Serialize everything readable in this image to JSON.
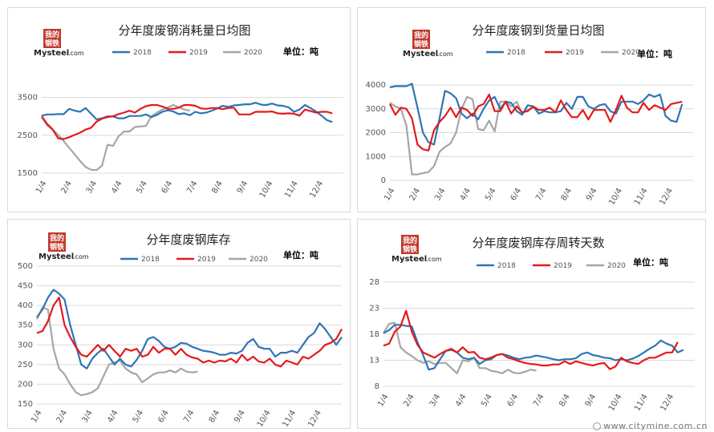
{
  "logo": {
    "line1": "我的",
    "line2": "钢铁",
    "brand": "Mysteel",
    "domain": ".com"
  },
  "watermark": "www.citymine.com.cn",
  "colors": {
    "s2018": "#2e75b6",
    "s2019": "#e41a1c",
    "s2020": "#a6a6a6",
    "grid": "#d9d9d9"
  },
  "chart_data": [
    {
      "type": "line",
      "title": "分年度废钢消耗量日均图",
      "unit_label": "单位：吨",
      "x_ticks": [
        "1/4",
        "2/4",
        "3/4",
        "4/4",
        "5/4",
        "6/4",
        "7/4",
        "8/4",
        "9/4",
        "10/4",
        "11/4",
        "12/4"
      ],
      "ylim": [
        1500,
        4000
      ],
      "y_ticks": [
        1500,
        2500,
        3500
      ],
      "legend_position": "top",
      "series": [
        {
          "name": "2018",
          "values": [
            3020,
            3050,
            3050,
            3060,
            3060,
            3200,
            3150,
            3120,
            3220,
            3070,
            2920,
            2950,
            3000,
            3000,
            2950,
            2950,
            3010,
            3010,
            3010,
            3050,
            2980,
            3040,
            3120,
            3160,
            3130,
            3060,
            3080,
            3030,
            3120,
            3080,
            3100,
            3150,
            3210,
            3280,
            3250,
            3290,
            3300,
            3320,
            3320,
            3360,
            3310,
            3300,
            3340,
            3290,
            3280,
            3240,
            3120,
            3180,
            3300,
            3220,
            3130,
            3020,
            2900,
            2850
          ]
        },
        {
          "name": "2019",
          "values": [
            3000,
            2800,
            2650,
            2420,
            2400,
            2450,
            2510,
            2570,
            2650,
            2700,
            2860,
            2940,
            2980,
            3000,
            3060,
            3100,
            3150,
            3100,
            3200,
            3270,
            3300,
            3300,
            3260,
            3200,
            3200,
            3230,
            3300,
            3300,
            3280,
            3210,
            3200,
            3220,
            3220,
            3190,
            3220,
            3230,
            3050,
            3050,
            3050,
            3120,
            3120,
            3120,
            3130,
            3080,
            3070,
            3080,
            3070,
            3020,
            3180,
            3140,
            3100,
            3120,
            3120,
            3080
          ]
        },
        {
          "name": "2020",
          "values": [
            2980,
            2760,
            2650,
            2510,
            2350,
            2170,
            2000,
            1820,
            1660,
            1590,
            1580,
            1700,
            2250,
            2220,
            2470,
            2600,
            2600,
            2720,
            2730,
            2750,
            3000,
            3100,
            3180,
            3240,
            3300,
            3240,
            3180,
            3150
          ]
        }
      ]
    },
    {
      "type": "line",
      "title": "分年度废钢到货量日均图",
      "unit_label": "单位：吨",
      "x_ticks": [
        "1/4",
        "2/4",
        "3/4",
        "4/4",
        "5/4",
        "6/4",
        "7/4",
        "8/4",
        "9/4",
        "10/4",
        "11/4",
        "12/4"
      ],
      "ylim": [
        0,
        4000
      ],
      "y_ticks": [
        0,
        1000,
        2000,
        3000,
        4000
      ],
      "legend_position": "top",
      "series": [
        {
          "name": "2018",
          "values": [
            3900,
            3950,
            3950,
            3950,
            4050,
            3050,
            2000,
            1600,
            1500,
            2600,
            3750,
            3650,
            3450,
            2800,
            2600,
            2800,
            2550,
            3000,
            3350,
            3500,
            3000,
            3300,
            3250,
            2900,
            2750,
            3150,
            3100,
            2800,
            2900,
            2850,
            2850,
            2900,
            3250,
            3000,
            3500,
            3500,
            3100,
            3000,
            3150,
            3200,
            2900,
            2800,
            3300,
            3300,
            3300,
            3200,
            3350,
            3600,
            3500,
            3600,
            2700,
            2500,
            2450,
            3200
          ]
        },
        {
          "name": "2019",
          "values": [
            3200,
            2750,
            3050,
            3000,
            2600,
            1500,
            1300,
            1250,
            2100,
            2450,
            2700,
            3050,
            2650,
            3050,
            2950,
            2700,
            3100,
            3200,
            3600,
            2900,
            2900,
            3300,
            2800,
            3100,
            2850,
            2900,
            3100,
            2950,
            2950,
            3050,
            2850,
            3350,
            2950,
            2650,
            2650,
            2950,
            2550,
            2950,
            2950,
            2950,
            2450,
            2950,
            3550,
            3050,
            2850,
            2850,
            3250,
            2950,
            3150,
            3050,
            2950,
            3200,
            3250,
            3300
          ]
        },
        {
          "name": "2020",
          "values": [
            3250,
            3100,
            3000,
            2300,
            250,
            250,
            300,
            350,
            600,
            1200,
            1400,
            1550,
            2000,
            3000,
            3500,
            3400,
            2150,
            2100,
            2500,
            2050,
            3300,
            3300,
            3100,
            3300,
            2800,
            2950,
            3050
          ]
        }
      ]
    },
    {
      "type": "line",
      "title": "分年度废钢库存",
      "unit_label": "单位：吨",
      "x_ticks": [
        "1/4",
        "2/4",
        "3/4",
        "4/4",
        "5/4",
        "6/4",
        "7/4",
        "8/4",
        "9/4",
        "10/4",
        "11/4",
        "12/4"
      ],
      "ylim": [
        150,
        500
      ],
      "y_ticks": [
        150,
        200,
        250,
        300,
        350,
        400,
        450,
        500
      ],
      "legend_position": "top",
      "series": [
        {
          "name": "2018",
          "values": [
            370,
            390,
            420,
            440,
            430,
            415,
            350,
            300,
            250,
            240,
            265,
            280,
            290,
            270,
            250,
            265,
            250,
            245,
            262,
            285,
            315,
            320,
            310,
            295,
            290,
            295,
            305,
            303,
            295,
            290,
            285,
            283,
            280,
            275,
            275,
            280,
            278,
            285,
            305,
            315,
            295,
            290,
            290,
            270,
            280,
            280,
            285,
            280,
            300,
            320,
            330,
            355,
            340,
            320,
            300,
            320
          ]
        },
        {
          "name": "2019",
          "values": [
            330,
            335,
            360,
            400,
            420,
            350,
            320,
            295,
            275,
            270,
            285,
            300,
            285,
            300,
            285,
            270,
            290,
            285,
            290,
            270,
            275,
            295,
            280,
            290,
            290,
            275,
            290,
            275,
            268,
            265,
            255,
            260,
            255,
            260,
            258,
            265,
            255,
            275,
            260,
            270,
            258,
            255,
            265,
            250,
            245,
            260,
            255,
            250,
            270,
            265,
            275,
            285,
            300,
            305,
            315,
            340
          ]
        },
        {
          "name": "2020",
          "values": [
            365,
            395,
            390,
            290,
            240,
            225,
            200,
            180,
            172,
            175,
            180,
            190,
            220,
            250,
            255,
            260,
            240,
            230,
            225,
            205,
            215,
            225,
            230,
            230,
            235,
            230,
            240,
            232,
            230,
            232
          ]
        }
      ]
    },
    {
      "type": "line",
      "title": "分年度废钢库存周转天数",
      "unit_label": "单位：吨",
      "x_ticks": [
        "1/4",
        "2/4",
        "3/4",
        "4/4",
        "5/4",
        "6/4",
        "7/4",
        "8/4",
        "9/4",
        "10/4",
        "11/4",
        "12/4"
      ],
      "ylim": [
        8,
        28
      ],
      "y_ticks": [
        8,
        13,
        18,
        23,
        28
      ],
      "legend_position": "top",
      "series": [
        {
          "name": "2018",
          "values": [
            18.2,
            18.8,
            19.8,
            19.8,
            19.6,
            19.5,
            16.5,
            14.0,
            11.2,
            11.5,
            13.2,
            14.8,
            15.0,
            14.5,
            13.5,
            13.2,
            13.5,
            12.3,
            13.0,
            13.2,
            14.0,
            14.2,
            13.9,
            13.5,
            13.2,
            13.5,
            13.6,
            13.9,
            13.7,
            13.5,
            13.2,
            13.0,
            13.2,
            13.2,
            13.4,
            14.2,
            14.5,
            14.0,
            13.8,
            13.5,
            13.4,
            13.0,
            13.2,
            13.0,
            13.3,
            13.8,
            14.5,
            15.2,
            15.8,
            16.8,
            16.2,
            15.8,
            14.5,
            15.0
          ]
        },
        {
          "name": "2019",
          "values": [
            15.8,
            16.2,
            18.5,
            19.5,
            22.5,
            18.5,
            16.0,
            14.5,
            14.0,
            13.5,
            14.2,
            14.8,
            15.2,
            14.5,
            15.5,
            14.5,
            14.6,
            13.5,
            13.2,
            13.5,
            14.0,
            14.2,
            13.5,
            13.2,
            12.8,
            12.5,
            12.3,
            12.2,
            12.0,
            12.0,
            12.2,
            12.2,
            12.8,
            12.3,
            12.8,
            12.5,
            12.2,
            12.0,
            12.3,
            12.5,
            11.3,
            11.8,
            13.5,
            12.8,
            12.5,
            12.3,
            13.0,
            13.5,
            13.5,
            14.0,
            14.5,
            14.5,
            16.5
          ]
        },
        {
          "name": "2020",
          "values": [
            18.2,
            20.0,
            20.2,
            15.5,
            14.5,
            13.8,
            13.0,
            12.5,
            12.8,
            12.3,
            12.5,
            12.5,
            11.5,
            10.5,
            13.0,
            12.8,
            13.5,
            11.5,
            11.5,
            11.0,
            10.8,
            10.5,
            11.2,
            10.6,
            10.5,
            10.8,
            11.2,
            11.0
          ]
        }
      ]
    }
  ]
}
